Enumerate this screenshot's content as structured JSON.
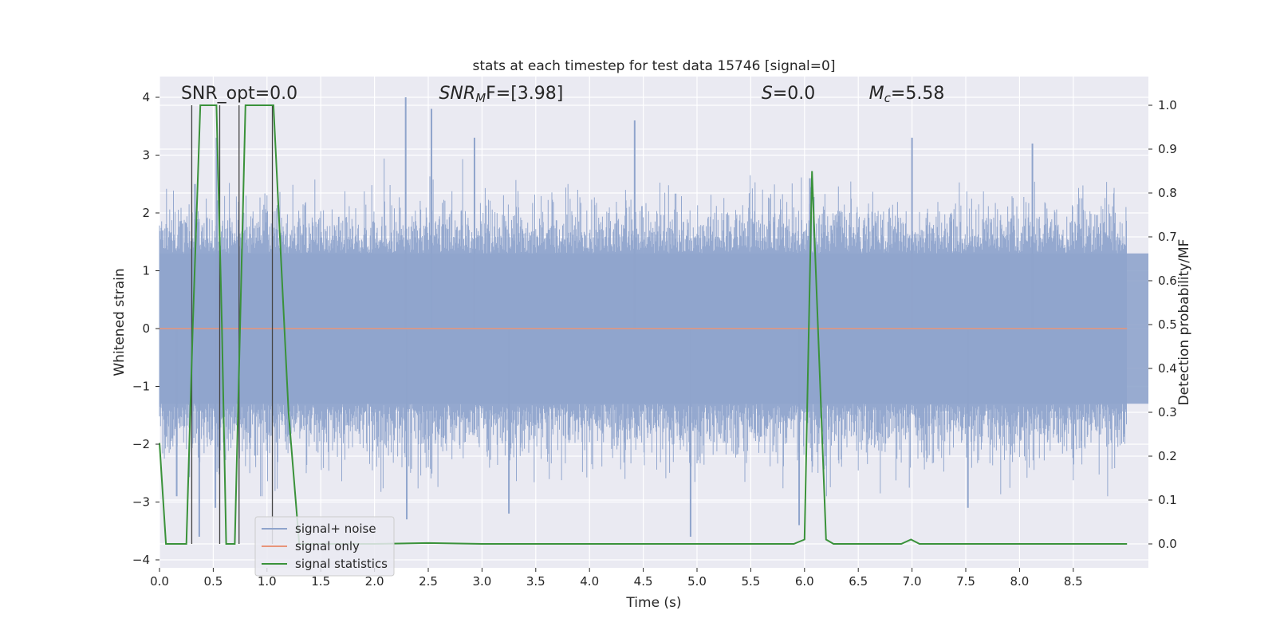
{
  "chart_data": {
    "type": "line",
    "title": "stats at each timestep for test data 15746 [signal=0]",
    "xlabel": "Time (s)",
    "ylabel": "Whitened strain",
    "y2label": "Detection probability/MF",
    "xlim": [
      0,
      9.0
    ],
    "ylim": [
      -4,
      4.4
    ],
    "y2lim": [
      -0.05,
      1.05
    ],
    "xticks": [
      0.0,
      0.5,
      1.0,
      1.5,
      2.0,
      2.5,
      3.0,
      3.5,
      4.0,
      4.5,
      5.0,
      5.5,
      6.0,
      6.5,
      7.0,
      7.5,
      8.0,
      8.5
    ],
    "xtick_labels": [
      "0.0",
      "0.5",
      "1.0",
      "1.5",
      "2.0",
      "2.5",
      "3.0",
      "3.5",
      "4.0",
      "4.5",
      "5.0",
      "5.5",
      "6.0",
      "6.5",
      "7.0",
      "7.5",
      "8.0",
      "8.5"
    ],
    "yticks": [
      -4,
      -3,
      -2,
      -1,
      0,
      1,
      2,
      3,
      4
    ],
    "ytick_labels": [
      "−4",
      "−3",
      "−2",
      "−1",
      "0",
      "1",
      "2",
      "3",
      "4"
    ],
    "y2ticks": [
      0.0,
      0.1,
      0.2,
      0.3,
      0.4,
      0.5,
      0.6,
      0.7,
      0.8,
      0.9,
      1.0
    ],
    "y2tick_labels": [
      "0.0",
      "0.1",
      "0.2",
      "0.3",
      "0.4",
      "0.5",
      "0.6",
      "0.7",
      "0.8",
      "0.9",
      "1.0"
    ],
    "grid": true,
    "legend_position": "lower-left",
    "annotations": [
      {
        "name": "snr-opt",
        "text": "SNR_opt=0.0",
        "x": 0.2
      },
      {
        "name": "snr-mf",
        "text": "SNR",
        "sub": "M",
        "tail": "F=[3.98]",
        "italic": true,
        "x": 2.6
      },
      {
        "name": "s-value",
        "text": "S",
        "tail": "=0.0",
        "italic": true,
        "x": 5.6
      },
      {
        "name": "mc-value",
        "text": "M",
        "sub": "c",
        "tail": "=5.58",
        "italic": true,
        "x": 6.6
      }
    ],
    "series": [
      {
        "name": "signal+ noise",
        "axis": "left",
        "color": "#8fa4cc",
        "generated": true,
        "duration": 9.0,
        "samples": 1800,
        "seed": 15746,
        "core_amplitude": 1.3,
        "spikes": [
          {
            "x": 2.29,
            "y": 4.0
          },
          {
            "x": 2.53,
            "y": 3.8
          },
          {
            "x": 2.93,
            "y": 3.3
          },
          {
            "x": 4.42,
            "y": 3.6
          },
          {
            "x": 7.0,
            "y": 3.3
          },
          {
            "x": 0.33,
            "y": 2.5
          },
          {
            "x": 0.53,
            "y": 3.3
          },
          {
            "x": 6.05,
            "y": 2.6
          },
          {
            "x": 8.12,
            "y": 3.2
          },
          {
            "x": 4.94,
            "y": -3.6
          },
          {
            "x": 0.37,
            "y": -3.6
          },
          {
            "x": 7.52,
            "y": -3.1
          },
          {
            "x": 2.3,
            "y": -3.3
          },
          {
            "x": 3.25,
            "y": -3.2
          },
          {
            "x": 5.95,
            "y": -3.4
          },
          {
            "x": 0.16,
            "y": -2.9
          },
          {
            "x": 0.52,
            "y": -3.1
          }
        ]
      },
      {
        "name": "signal only",
        "axis": "left",
        "color": "#e8957a",
        "x": [
          0.0,
          9.0
        ],
        "y": [
          0.0,
          0.0
        ]
      },
      {
        "name": "signal statistics",
        "axis": "right",
        "color": "#3a923a",
        "x": [
          0.0,
          0.06,
          0.14,
          0.25,
          0.31,
          0.38,
          0.53,
          0.58,
          0.62,
          0.7,
          0.8,
          0.85,
          1.0,
          1.06,
          1.2,
          1.3,
          2.0,
          2.5,
          3.0,
          5.9,
          6.0,
          6.07,
          6.2,
          6.27,
          6.9,
          6.99,
          7.07,
          7.5,
          9.0
        ],
        "y": [
          0.23,
          0.0,
          0.0,
          0.0,
          0.5,
          1.0,
          1.0,
          0.5,
          0.0,
          0.0,
          1.0,
          1.0,
          1.0,
          1.0,
          0.3,
          0.0,
          0.0,
          0.002,
          0.0,
          0.0,
          0.01,
          0.85,
          0.01,
          0.0,
          0.0,
          0.01,
          0.0,
          0.0,
          0.0
        ]
      },
      {
        "name": "event markers",
        "axis": "right",
        "color": "#444444",
        "legend": false,
        "x": [
          0.3,
          0.56,
          0.74,
          1.05
        ],
        "y": [
          1.0,
          1.0,
          1.0,
          1.0
        ]
      }
    ]
  }
}
